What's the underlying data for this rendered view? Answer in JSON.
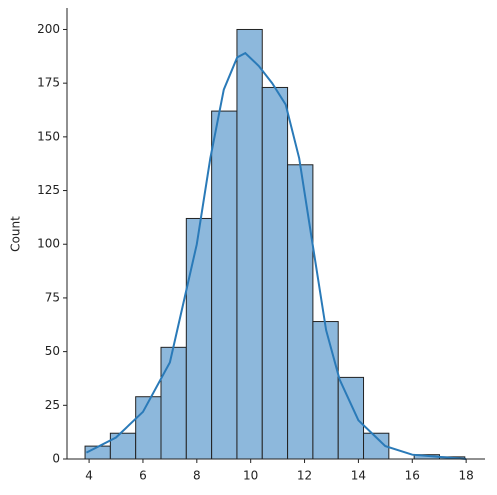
{
  "chart_data": {
    "type": "histogram",
    "ylabel": "Count",
    "bins": [
      3.85,
      4.79,
      5.73,
      6.67,
      7.61,
      8.55,
      9.49,
      10.43,
      11.37,
      12.31,
      13.25,
      14.19,
      15.13,
      16.07,
      17.01,
      17.95
    ],
    "counts": [
      6,
      12,
      29,
      52,
      112,
      162,
      200,
      173,
      137,
      64,
      38,
      12,
      0,
      2,
      1
    ],
    "color": "#8db8dc",
    "edgecolor": "#222222",
    "kde": {
      "color": "#2a7ab8",
      "x": [
        3.9,
        5,
        6,
        7,
        8,
        8.5,
        9,
        9.5,
        9.8,
        10.3,
        10.8,
        11.3,
        11.8,
        12.3,
        12.8,
        13.3,
        14,
        15,
        16,
        17,
        18
      ],
      "y": [
        3,
        10,
        22,
        45,
        100,
        140,
        172,
        187,
        189,
        183,
        175,
        165,
        140,
        100,
        60,
        37,
        18,
        6,
        2,
        1,
        0
      ]
    },
    "xlim": [
      3.18,
      18.7
    ],
    "ylim": [
      0,
      210
    ],
    "xticks": [
      4,
      6,
      8,
      10,
      12,
      14,
      16,
      18
    ],
    "yticks": [
      0,
      25,
      50,
      75,
      100,
      125,
      150,
      175,
      200
    ]
  }
}
